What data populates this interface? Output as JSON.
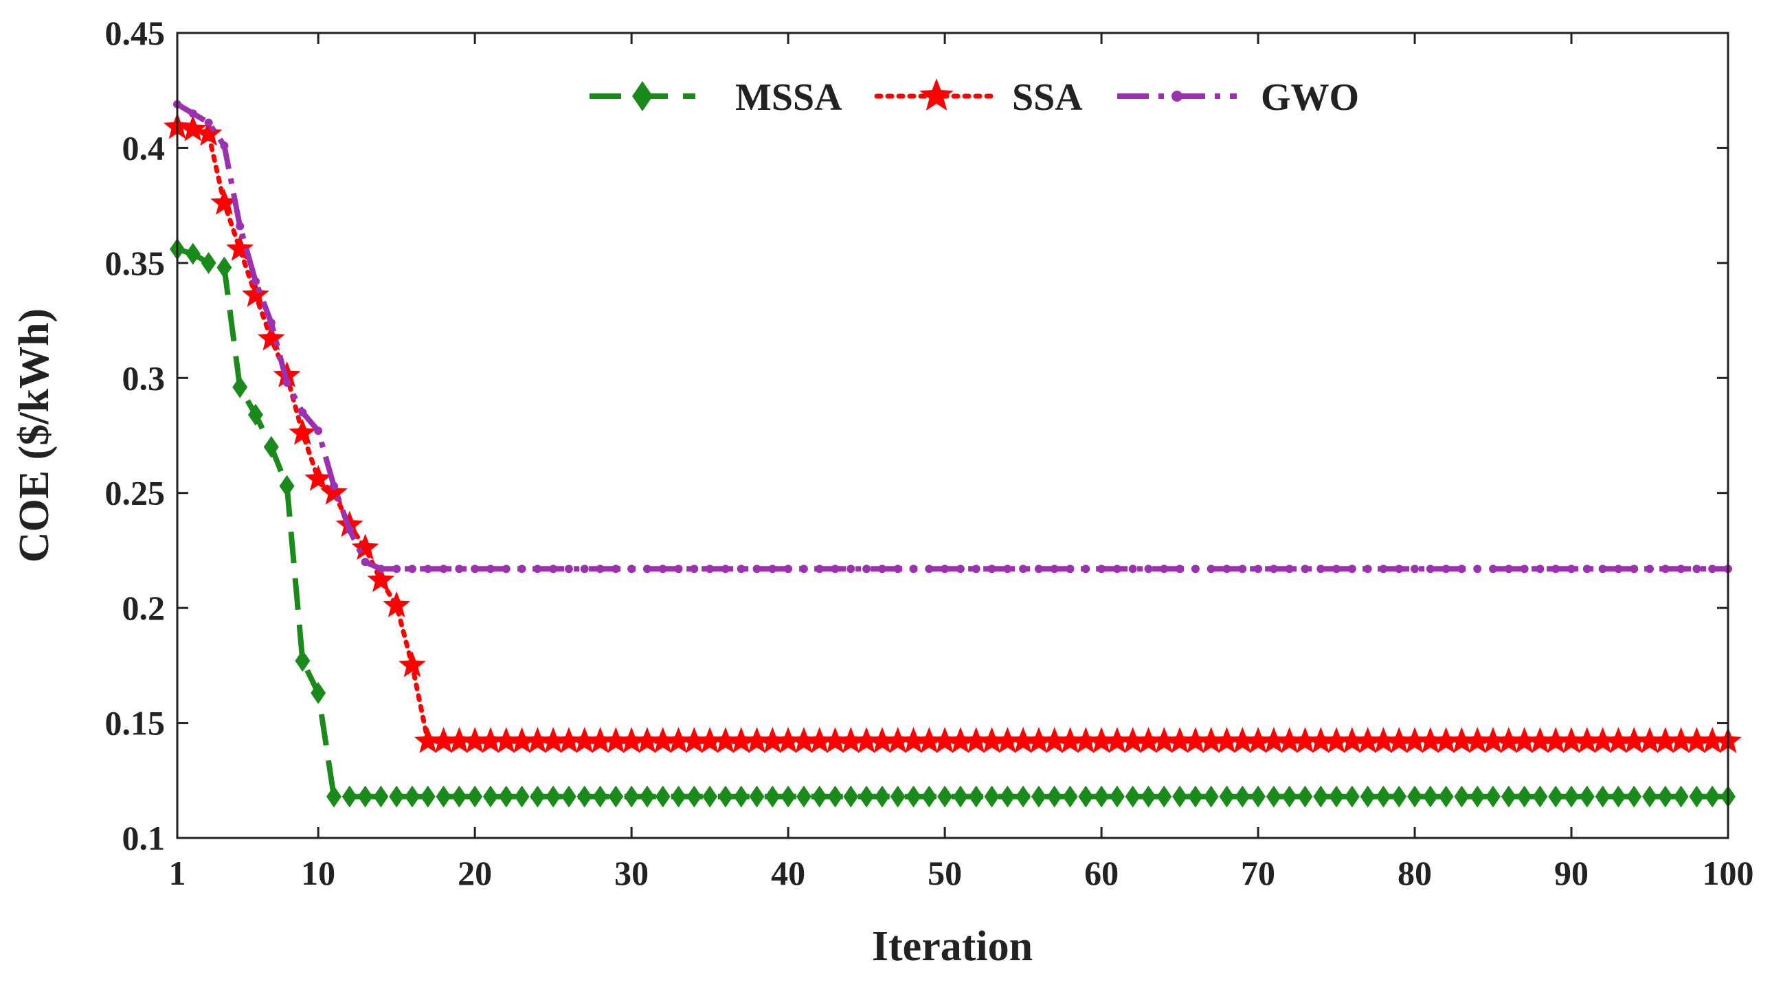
{
  "chart_data": {
    "type": "line",
    "title": "",
    "xlabel": "Iteration",
    "ylabel": "COE ($/kWh)",
    "xlim": [
      1,
      100
    ],
    "ylim": [
      0.1,
      0.45
    ],
    "xticks": [
      1,
      10,
      20,
      30,
      40,
      50,
      60,
      70,
      80,
      90,
      100
    ],
    "xtick_labels": [
      "1",
      "10",
      "20",
      "30",
      "40",
      "50",
      "60",
      "70",
      "80",
      "90",
      "100"
    ],
    "yticks": [
      0.1,
      0.15,
      0.2,
      0.25,
      0.3,
      0.35,
      0.4,
      0.45
    ],
    "ytick_labels": [
      "0.1",
      "0.15",
      "0.2",
      "0.25",
      "0.3",
      "0.35",
      "0.4",
      "0.45"
    ],
    "grid": false,
    "legend_position": "top-center",
    "series": [
      {
        "name": "MSSA",
        "color": "#1a8a1a",
        "line_style": "dashed",
        "marker": "diamond",
        "head": [
          0.356,
          0.354,
          0.35,
          0.348,
          0.296,
          0.284,
          0.27,
          0.253,
          0.177,
          0.163
        ],
        "plateau": 0.118
      },
      {
        "name": "SSA",
        "color": "#ff0000",
        "line_style": "dotted",
        "marker": "star",
        "head": [
          0.409,
          0.408,
          0.406,
          0.376,
          0.356,
          0.336,
          0.317,
          0.301,
          0.276,
          0.256,
          0.25,
          0.236,
          0.226,
          0.212,
          0.201,
          0.175
        ],
        "plateau": 0.142
      },
      {
        "name": "GWO",
        "color": "#9b30b0",
        "line_style": "dash-dot",
        "marker": "dot",
        "head": [
          0.419,
          0.415,
          0.411,
          0.401,
          0.366,
          0.342,
          0.324,
          0.298,
          0.285,
          0.277,
          0.253,
          0.234,
          0.22
        ],
        "plateau": 0.217
      }
    ]
  }
}
